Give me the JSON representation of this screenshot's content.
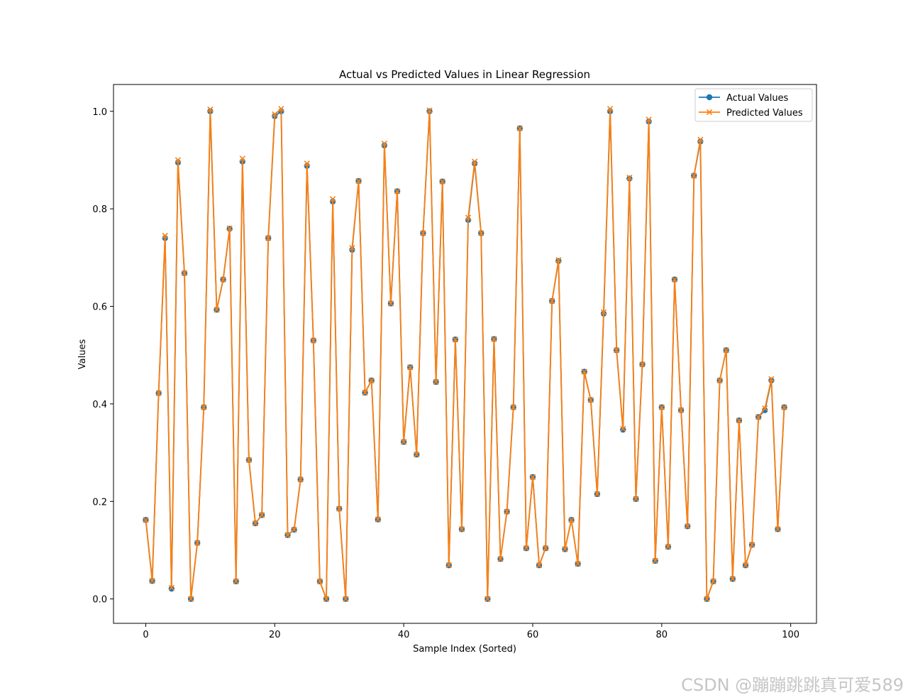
{
  "chart_data": {
    "type": "line",
    "title": "Actual vs Predicted Values in Linear Regression",
    "xlabel": "Sample Index (Sorted)",
    "ylabel": "Values",
    "xlim": [
      -5,
      104
    ],
    "ylim": [
      -0.05,
      1.055
    ],
    "xticks": [
      0,
      20,
      40,
      60,
      80,
      100
    ],
    "yticks": [
      0.0,
      0.2,
      0.4,
      0.6,
      0.8,
      1.0
    ],
    "legend_position": "top-right",
    "x": [
      0,
      1,
      2,
      3,
      4,
      5,
      6,
      7,
      8,
      9,
      10,
      11,
      12,
      13,
      14,
      15,
      16,
      17,
      18,
      19,
      20,
      21,
      22,
      23,
      24,
      25,
      26,
      27,
      28,
      29,
      30,
      31,
      32,
      33,
      34,
      35,
      36,
      37,
      38,
      39,
      40,
      41,
      42,
      43,
      44,
      45,
      46,
      47,
      48,
      49,
      50,
      51,
      52,
      53,
      54,
      55,
      56,
      57,
      58,
      59,
      60,
      61,
      62,
      63,
      64,
      65,
      66,
      67,
      68,
      69,
      70,
      71,
      72,
      73,
      74,
      75,
      76,
      77,
      78,
      79,
      80,
      81,
      82,
      83,
      84,
      85,
      86,
      87,
      88,
      89,
      90,
      91,
      92,
      93,
      94,
      95,
      96,
      97,
      98,
      99
    ],
    "series": [
      {
        "name": "Actual Values",
        "color": "#1f77b4",
        "marker": "o",
        "values": [
          0.162,
          0.037,
          0.422,
          0.74,
          0.021,
          0.895,
          0.668,
          0.0,
          0.115,
          0.393,
          1.0,
          0.593,
          0.655,
          0.759,
          0.036,
          0.897,
          0.285,
          0.155,
          0.172,
          0.74,
          0.99,
          1.0,
          0.131,
          0.142,
          0.245,
          0.888,
          0.53,
          0.036,
          0.0,
          0.815,
          0.185,
          0.0,
          0.716,
          0.857,
          0.423,
          0.448,
          0.163,
          0.93,
          0.606,
          0.836,
          0.322,
          0.475,
          0.296,
          0.75,
          1.0,
          0.445,
          0.856,
          0.069,
          0.532,
          0.143,
          0.777,
          0.893,
          0.75,
          0.0,
          0.533,
          0.082,
          0.179,
          0.393,
          0.965,
          0.104,
          0.25,
          0.069,
          0.104,
          0.611,
          0.693,
          0.102,
          0.162,
          0.072,
          0.466,
          0.408,
          0.215,
          0.585,
          1.0,
          0.51,
          0.347,
          0.862,
          0.205,
          0.481,
          0.979,
          0.078,
          0.393,
          0.107,
          0.655,
          0.387,
          0.149,
          0.868,
          0.938,
          0.0,
          0.036,
          0.448,
          0.51,
          0.041,
          0.366,
          0.069,
          0.111,
          0.373,
          0.387,
          0.448,
          0.143,
          0.393
        ]
      },
      {
        "name": "Predicted Values",
        "color": "#ff7f0e",
        "marker": "x",
        "values": [
          0.162,
          0.037,
          0.422,
          0.745,
          0.023,
          0.9,
          0.668,
          0.0,
          0.115,
          0.393,
          1.004,
          0.593,
          0.655,
          0.76,
          0.036,
          0.903,
          0.285,
          0.155,
          0.172,
          0.74,
          0.994,
          1.005,
          0.131,
          0.142,
          0.245,
          0.893,
          0.53,
          0.036,
          0.0,
          0.82,
          0.185,
          0.0,
          0.72,
          0.857,
          0.423,
          0.448,
          0.163,
          0.934,
          0.606,
          0.836,
          0.322,
          0.475,
          0.296,
          0.75,
          1.002,
          0.445,
          0.856,
          0.069,
          0.532,
          0.143,
          0.782,
          0.897,
          0.75,
          0.0,
          0.533,
          0.082,
          0.179,
          0.393,
          0.965,
          0.104,
          0.25,
          0.069,
          0.104,
          0.611,
          0.695,
          0.102,
          0.162,
          0.072,
          0.466,
          0.408,
          0.215,
          0.588,
          1.005,
          0.51,
          0.349,
          0.864,
          0.205,
          0.481,
          0.983,
          0.078,
          0.393,
          0.107,
          0.655,
          0.387,
          0.149,
          0.868,
          0.942,
          0.0,
          0.036,
          0.448,
          0.51,
          0.041,
          0.366,
          0.069,
          0.111,
          0.373,
          0.391,
          0.451,
          0.143,
          0.393
        ]
      }
    ]
  },
  "watermark": "CSDN @蹦蹦跳跳真可爱589"
}
